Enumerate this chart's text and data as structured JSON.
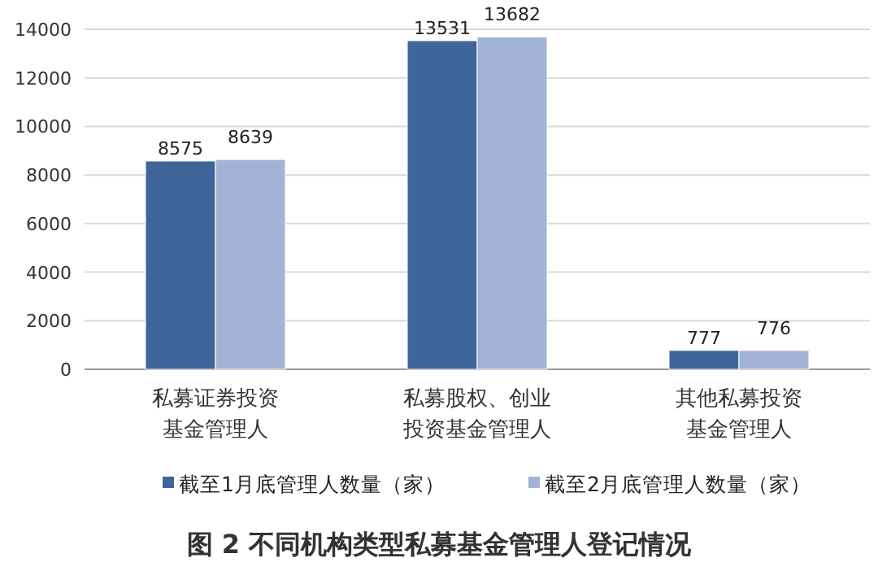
{
  "chart_data": {
    "type": "bar",
    "title": "图 2  不同机构类型私募基金管理人登记情况",
    "categories": [
      "私募证券投资基金管理人",
      "私募股权、创业投资基金管理人",
      "其他私募投资基金管理人"
    ],
    "series": [
      {
        "name": "截至1月底管理人数量（家）",
        "color": "#40659a",
        "values": [
          8575,
          13531,
          777
        ]
      },
      {
        "name": "截至2月底管理人数量（家）",
        "color": "#a3b3d6",
        "values": [
          8639,
          13682,
          776
        ]
      }
    ],
    "ylim": [
      0,
      14000
    ],
    "yticks": [
      0,
      2000,
      4000,
      6000,
      8000,
      10000,
      12000,
      14000
    ],
    "grid": "y",
    "legend": "bottom",
    "data_labels": true
  }
}
